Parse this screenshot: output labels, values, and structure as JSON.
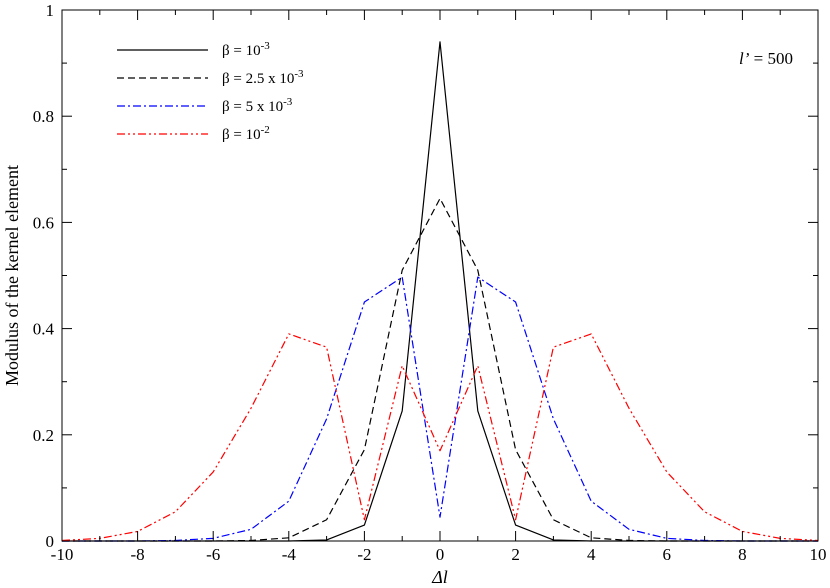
{
  "chart_data": {
    "type": "line",
    "xlabel": "Δl",
    "ylabel": "Modulus of the kernel element",
    "xlim": [
      -10,
      10
    ],
    "ylim": [
      0,
      1
    ],
    "x_ticks": [
      -10,
      -8,
      -6,
      -4,
      -2,
      0,
      2,
      4,
      6,
      8,
      10
    ],
    "y_ticks": [
      0,
      0.2,
      0.4,
      0.6,
      0.8,
      1
    ],
    "x_tick_labels": [
      "-10",
      "-8",
      "-6",
      "-4",
      "-2",
      "0",
      "2",
      "4",
      "6",
      "8",
      "10"
    ],
    "y_tick_labels": [
      "0",
      "0.2",
      "0.4",
      "0.6",
      "0.8",
      "1"
    ],
    "grid": false,
    "legend_position": "top-left",
    "annotation": {
      "prefix": "l’",
      "suffix": " = 500"
    },
    "series": [
      {
        "name": "β = 10^-3",
        "legend_base": "β = 10",
        "legend_exp": "-3",
        "color": "#000000",
        "dash": "solid",
        "x": [
          -10,
          -9,
          -8,
          -7,
          -6,
          -5,
          -4,
          -3,
          -2,
          -1,
          0,
          1,
          2,
          3,
          4,
          5,
          6,
          7,
          8,
          9,
          10
        ],
        "y": [
          0,
          0,
          0,
          0,
          0,
          0,
          0,
          0.002,
          0.03,
          0.245,
          0.94,
          0.245,
          0.03,
          0.002,
          0,
          0,
          0,
          0,
          0,
          0,
          0
        ]
      },
      {
        "name": "β = 2.5 x 10^-3",
        "legend_base": "β = 2.5 x 10",
        "legend_exp": "-3",
        "color": "#000000",
        "dash": "dashed",
        "x": [
          -10,
          -9,
          -8,
          -7,
          -6,
          -5,
          -4,
          -3,
          -2,
          -1,
          0,
          1,
          2,
          3,
          4,
          5,
          6,
          7,
          8,
          9,
          10
        ],
        "y": [
          0,
          0,
          0,
          0,
          0,
          0.001,
          0.006,
          0.04,
          0.172,
          0.51,
          0.645,
          0.51,
          0.172,
          0.04,
          0.006,
          0.001,
          0,
          0,
          0,
          0,
          0
        ]
      },
      {
        "name": "β = 5 x 10^-3",
        "legend_base": "β = 5 x 10",
        "legend_exp": "-3",
        "color": "#0000ff",
        "dash": "dashdot",
        "x": [
          -10,
          -9,
          -8,
          -7,
          -6,
          -5,
          -4,
          -3,
          -2,
          -1,
          0,
          1,
          2,
          3,
          4,
          5,
          6,
          7,
          8,
          9,
          10
        ],
        "y": [
          0,
          0,
          0,
          0.001,
          0.005,
          0.022,
          0.075,
          0.23,
          0.45,
          0.497,
          0.045,
          0.497,
          0.45,
          0.23,
          0.075,
          0.022,
          0.005,
          0.001,
          0,
          0,
          0
        ]
      },
      {
        "name": "β = 10^-2",
        "legend_base": "β = 10",
        "legend_exp": "-2",
        "color": "#ff0000",
        "dash": "dashdotdot",
        "x": [
          -10,
          -9,
          -8,
          -7,
          -6,
          -5,
          -4,
          -3,
          -2,
          -1,
          0,
          1,
          2,
          3,
          4,
          5,
          6,
          7,
          8,
          9,
          10
        ],
        "y": [
          0.001,
          0.005,
          0.018,
          0.055,
          0.13,
          0.25,
          0.39,
          0.365,
          0.04,
          0.33,
          0.17,
          0.33,
          0.04,
          0.365,
          0.39,
          0.25,
          0.13,
          0.055,
          0.018,
          0.005,
          0.001
        ]
      }
    ]
  }
}
